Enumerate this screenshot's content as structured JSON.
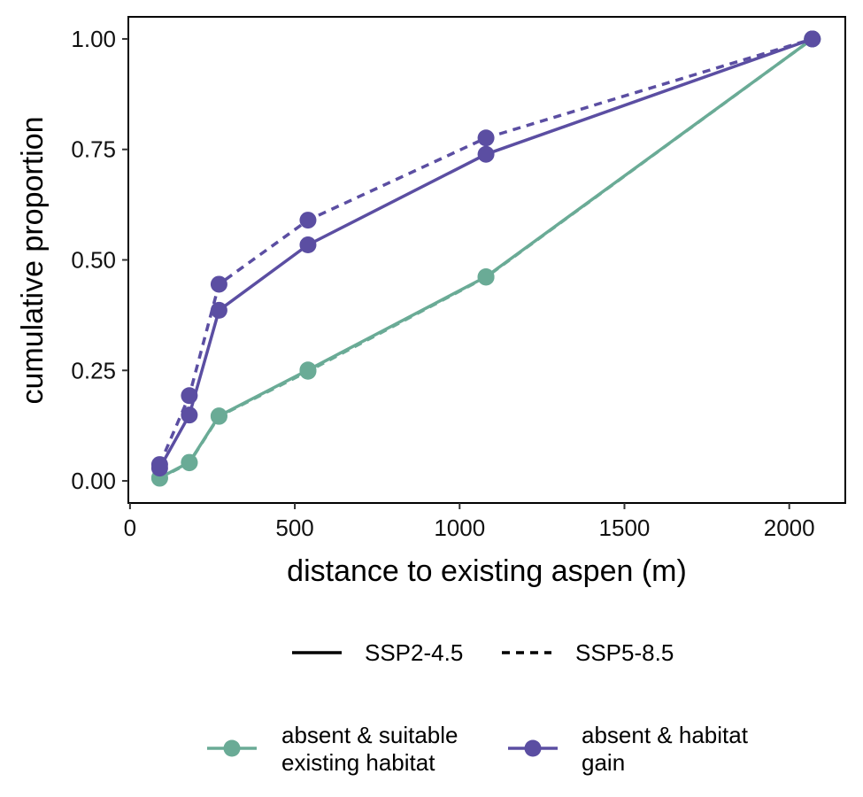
{
  "chart_data": {
    "type": "line",
    "xlabel": "distance to existing aspen (m)",
    "ylabel": "cumulative proportion",
    "xlim": [
      -5,
      2170
    ],
    "ylim": [
      -0.05,
      1.05
    ],
    "x_ticks": [
      0,
      500,
      1000,
      1500,
      2000
    ],
    "y_ticks": [
      0.0,
      0.25,
      0.5,
      0.75,
      1.0
    ],
    "x_tick_labels": [
      "0",
      "500",
      "1000",
      "1500",
      "2000"
    ],
    "y_tick_labels": [
      "0.00",
      "0.25",
      "0.50",
      "0.75",
      "1.00"
    ],
    "grid": false,
    "legend_position": "bottom",
    "scenario_legend": [
      {
        "label": "SSP2-4.5",
        "linetype": "solid"
      },
      {
        "label": "SSP5-8.5",
        "linetype": "dashed"
      }
    ],
    "group_legend": [
      {
        "label_lines": [
          "absent & suitable",
          "existing habitat"
        ],
        "color": "#6aab96"
      },
      {
        "label_lines": [
          "absent & habitat",
          "gain"
        ],
        "color": "#5b4ea2"
      }
    ],
    "series": [
      {
        "group": "absent & suitable existing habitat",
        "scenario": "SSP2-4.5",
        "color": "#6aab96",
        "linetype": "solid",
        "x": [
          90,
          180,
          270,
          540,
          1080,
          2070
        ],
        "y": [
          0.007,
          0.042,
          0.147,
          0.251,
          0.462,
          1.0
        ]
      },
      {
        "group": "absent & suitable existing habitat",
        "scenario": "SSP5-8.5",
        "color": "#6aab96",
        "linetype": "dashed",
        "x": [
          90,
          180,
          270,
          540,
          1080,
          2070
        ],
        "y": [
          0.006,
          0.041,
          0.146,
          0.248,
          0.461,
          1.0
        ]
      },
      {
        "group": "absent & habitat gain",
        "scenario": "SSP2-4.5",
        "color": "#5b4ea2",
        "linetype": "solid",
        "x": [
          90,
          180,
          270,
          540,
          1080,
          2070
        ],
        "y": [
          0.029,
          0.149,
          0.386,
          0.534,
          0.739,
          1.0
        ]
      },
      {
        "group": "absent & habitat gain",
        "scenario": "SSP5-8.5",
        "color": "#5b4ea2",
        "linetype": "dashed",
        "x": [
          90,
          180,
          270,
          540,
          1080,
          2070
        ],
        "y": [
          0.037,
          0.193,
          0.445,
          0.59,
          0.776,
          1.0
        ]
      }
    ]
  }
}
